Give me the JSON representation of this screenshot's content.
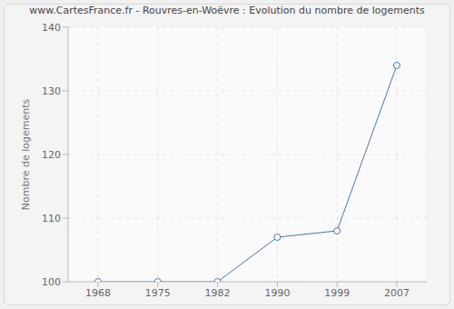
{
  "chart_data": {
    "type": "line",
    "title": "www.CartesFrance.fr - Rouvres-en-Woëvre : Evolution du nombre de logements",
    "y_label": "Nombre de logements",
    "categories": [
      "1968",
      "1975",
      "1982",
      "1990",
      "1999",
      "2007"
    ],
    "values": [
      100,
      100,
      100,
      107,
      108,
      134
    ],
    "color": "#4a74a4",
    "marker": "circle",
    "ylim": [
      100,
      140
    ],
    "yticks": [
      100,
      110,
      120,
      130,
      140
    ],
    "grid": true
  }
}
